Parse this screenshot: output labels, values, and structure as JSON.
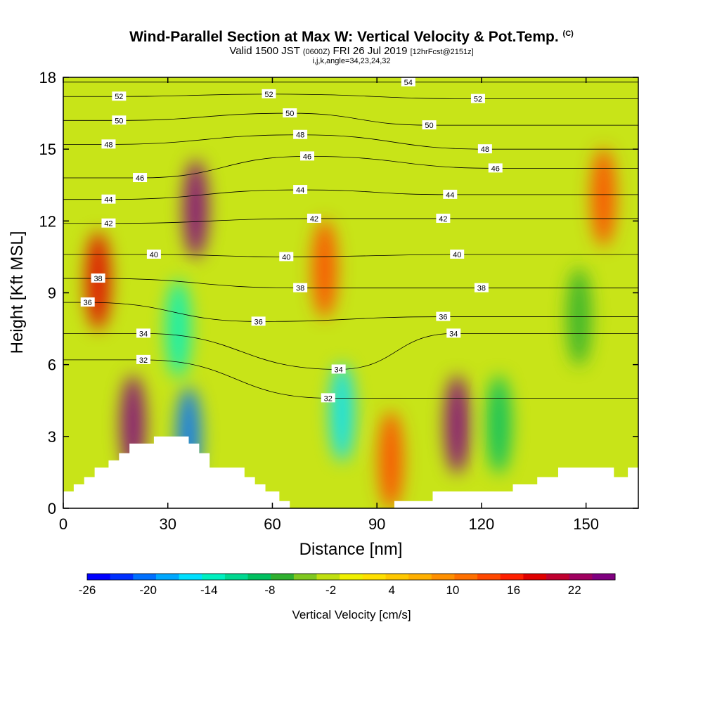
{
  "title": {
    "main": "Wind-Parallel Section at Max W: Vertical Velocity & Pot.Temp.",
    "copyright": "(C)",
    "valid_prefix": "Valid 1500 JST",
    "valid_utc": "(0600Z)",
    "valid_date": "FRI 26 Jul 2019",
    "forecast": "[12hrFcst@2151z]",
    "indices": "i,j,k,angle=34,23,24,32"
  },
  "chart_data": {
    "type": "heatmap",
    "xlabel": "Distance [nm]",
    "ylabel": "Height [Kft MSL]",
    "xlim": [
      0,
      165
    ],
    "ylim": [
      0,
      18
    ],
    "xticks": [
      0,
      30,
      60,
      90,
      120,
      150
    ],
    "yticks": [
      0,
      3,
      6,
      9,
      12,
      15,
      18
    ],
    "colorbar": {
      "title": "Vertical Velocity [cm/s]",
      "range": [
        -26,
        26
      ],
      "step": 2,
      "tick_labels": [
        "-26",
        "-20",
        "-14",
        "-8",
        "-2",
        "4",
        "10",
        "16",
        "22"
      ],
      "colors": [
        "#0000ff",
        "#0030ff",
        "#0070ff",
        "#00a8ff",
        "#00e0ff",
        "#00f0c0",
        "#00d890",
        "#00c060",
        "#30b030",
        "#80c820",
        "#c0e010",
        "#f0f000",
        "#ffe000",
        "#ffc800",
        "#ffb000",
        "#ff9000",
        "#ff7000",
        "#ff4800",
        "#ff2000",
        "#e00000",
        "#c00030",
        "#a00060",
        "#800080"
      ]
    },
    "vertical_velocity_cells": [
      {
        "x": 20,
        "y": 3.5,
        "value": 20
      },
      {
        "x": 38,
        "y": 12.5,
        "value": 22
      },
      {
        "x": 36,
        "y": 3.0,
        "value": -22
      },
      {
        "x": 33,
        "y": 7.5,
        "value": -16
      },
      {
        "x": 80,
        "y": 4.0,
        "value": -18
      },
      {
        "x": 113,
        "y": 3.5,
        "value": 24
      },
      {
        "x": 94,
        "y": 2.0,
        "value": 8
      },
      {
        "x": 10,
        "y": 9.5,
        "value": 12
      },
      {
        "x": 125,
        "y": 3.5,
        "value": -12
      },
      {
        "x": 148,
        "y": 8.0,
        "value": -10
      },
      {
        "x": 75,
        "y": 10.0,
        "value": 8
      },
      {
        "x": 155,
        "y": 13.0,
        "value": 8
      }
    ],
    "theta_contours": {
      "labels": [
        {
          "text": "52",
          "x": 16,
          "y": 17.2
        },
        {
          "text": "52",
          "x": 59,
          "y": 17.3
        },
        {
          "text": "54",
          "x": 99,
          "y": 17.8
        },
        {
          "text": "52",
          "x": 119,
          "y": 17.1
        },
        {
          "text": "50",
          "x": 16,
          "y": 16.2
        },
        {
          "text": "50",
          "x": 65,
          "y": 16.5
        },
        {
          "text": "50",
          "x": 105,
          "y": 16.0
        },
        {
          "text": "48",
          "x": 13,
          "y": 15.2
        },
        {
          "text": "48",
          "x": 68,
          "y": 15.6
        },
        {
          "text": "48",
          "x": 121,
          "y": 15.0
        },
        {
          "text": "46",
          "x": 22,
          "y": 13.8
        },
        {
          "text": "46",
          "x": 70,
          "y": 14.7
        },
        {
          "text": "46",
          "x": 124,
          "y": 14.2
        },
        {
          "text": "44",
          "x": 13,
          "y": 12.9
        },
        {
          "text": "44",
          "x": 68,
          "y": 13.3
        },
        {
          "text": "44",
          "x": 111,
          "y": 13.1
        },
        {
          "text": "42",
          "x": 13,
          "y": 11.9
        },
        {
          "text": "42",
          "x": 72,
          "y": 12.1
        },
        {
          "text": "42",
          "x": 109,
          "y": 12.1
        },
        {
          "text": "40",
          "x": 26,
          "y": 10.6
        },
        {
          "text": "40",
          "x": 64,
          "y": 10.5
        },
        {
          "text": "40",
          "x": 113,
          "y": 10.6
        },
        {
          "text": "38",
          "x": 10,
          "y": 9.6
        },
        {
          "text": "38",
          "x": 68,
          "y": 9.2
        },
        {
          "text": "38",
          "x": 120,
          "y": 9.2
        },
        {
          "text": "36",
          "x": 7,
          "y": 8.6
        },
        {
          "text": "36",
          "x": 56,
          "y": 7.8
        },
        {
          "text": "36",
          "x": 109,
          "y": 8.0
        },
        {
          "text": "34",
          "x": 23,
          "y": 7.3
        },
        {
          "text": "34",
          "x": 79,
          "y": 5.8
        },
        {
          "text": "34",
          "x": 112,
          "y": 7.3
        },
        {
          "text": "32",
          "x": 23,
          "y": 6.2
        },
        {
          "text": "32",
          "x": 76,
          "y": 4.6
        }
      ]
    },
    "terrain_heights": [
      [
        0,
        0.7
      ],
      [
        3,
        0.7
      ],
      [
        3,
        1.0
      ],
      [
        6,
        1.0
      ],
      [
        6,
        1.3
      ],
      [
        9,
        1.3
      ],
      [
        9,
        1.7
      ],
      [
        13,
        1.7
      ],
      [
        13,
        2.0
      ],
      [
        16,
        2.0
      ],
      [
        16,
        2.3
      ],
      [
        19,
        2.3
      ],
      [
        19,
        2.7
      ],
      [
        26,
        2.7
      ],
      [
        26,
        3.0
      ],
      [
        36,
        3.0
      ],
      [
        36,
        2.7
      ],
      [
        39,
        2.7
      ],
      [
        39,
        2.3
      ],
      [
        42,
        2.3
      ],
      [
        42,
        1.7
      ],
      [
        52,
        1.7
      ],
      [
        52,
        1.3
      ],
      [
        55,
        1.3
      ],
      [
        55,
        1.0
      ],
      [
        58,
        1.0
      ],
      [
        58,
        0.7
      ],
      [
        62,
        0.7
      ],
      [
        62,
        0.3
      ],
      [
        65,
        0.3
      ],
      [
        65,
        0
      ],
      [
        95,
        0
      ],
      [
        95,
        0.3
      ],
      [
        106,
        0.3
      ],
      [
        106,
        0.7
      ],
      [
        129,
        0.7
      ],
      [
        129,
        1.0
      ],
      [
        136,
        1.0
      ],
      [
        136,
        1.3
      ],
      [
        142,
        1.3
      ],
      [
        142,
        1.7
      ],
      [
        158,
        1.7
      ],
      [
        158,
        1.3
      ],
      [
        162,
        1.3
      ],
      [
        162,
        1.7
      ],
      [
        165,
        1.7
      ]
    ]
  }
}
